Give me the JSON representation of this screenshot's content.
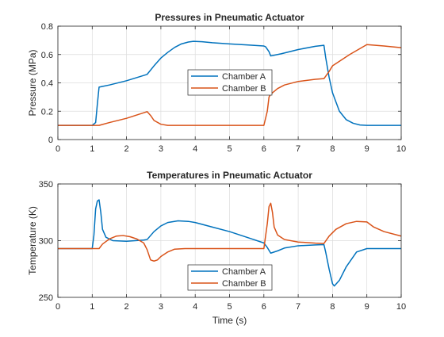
{
  "chart_data": [
    {
      "type": "line",
      "title": "Pressures in Pneumatic Actuator",
      "xlabel": "",
      "ylabel": "Pressure (MPa)",
      "xlim": [
        0,
        10
      ],
      "ylim": [
        0,
        0.8
      ],
      "xticks": [
        "0",
        "1",
        "2",
        "3",
        "4",
        "5",
        "6",
        "7",
        "8",
        "9",
        "10"
      ],
      "yticks": [
        "0",
        "0.2",
        "0.4",
        "0.6",
        "0.8"
      ],
      "grid": true,
      "legend": "center",
      "series": [
        {
          "name": "Chamber A",
          "color": "#0072BD",
          "x": [
            0,
            1.0,
            1.1,
            1.15,
            1.2,
            1.5,
            2.0,
            2.6,
            2.8,
            3.0,
            3.2,
            3.4,
            3.6,
            3.8,
            3.95,
            4.2,
            4.5,
            5.0,
            5.5,
            6.0,
            6.05,
            6.15,
            6.2,
            6.5,
            7.0,
            7.5,
            7.75,
            7.8,
            7.9,
            8.0,
            8.2,
            8.4,
            8.6,
            8.8,
            9.0,
            9.5,
            10
          ],
          "y": [
            0.1,
            0.1,
            0.12,
            0.25,
            0.37,
            0.385,
            0.415,
            0.46,
            0.52,
            0.575,
            0.615,
            0.65,
            0.675,
            0.688,
            0.693,
            0.69,
            0.683,
            0.675,
            0.668,
            0.66,
            0.655,
            0.62,
            0.59,
            0.605,
            0.635,
            0.658,
            0.665,
            0.58,
            0.44,
            0.33,
            0.2,
            0.14,
            0.115,
            0.103,
            0.1,
            0.1,
            0.1
          ]
        },
        {
          "name": "Chamber B",
          "color": "#D95319",
          "x": [
            0,
            1.2,
            1.5,
            2.0,
            2.6,
            2.7,
            2.8,
            3.0,
            3.2,
            3.5,
            4.0,
            5.0,
            6.0,
            6.1,
            6.15,
            6.2,
            6.4,
            6.6,
            7.0,
            7.5,
            7.75,
            7.9,
            8.0,
            8.5,
            9.0,
            9.5,
            10
          ],
          "y": [
            0.1,
            0.1,
            0.12,
            0.15,
            0.197,
            0.17,
            0.135,
            0.108,
            0.1,
            0.1,
            0.1,
            0.1,
            0.1,
            0.2,
            0.3,
            0.32,
            0.36,
            0.385,
            0.41,
            0.425,
            0.43,
            0.48,
            0.52,
            0.6,
            0.67,
            0.66,
            0.648
          ]
        }
      ]
    },
    {
      "type": "line",
      "title": "Temperatures in Pneumatic Actuator",
      "xlabel": "Time (s)",
      "ylabel": "Temperature (K)",
      "xlim": [
        0,
        10
      ],
      "ylim": [
        250,
        350
      ],
      "xticks": [
        "0",
        "1",
        "2",
        "3",
        "4",
        "5",
        "6",
        "7",
        "8",
        "9",
        "10"
      ],
      "yticks": [
        "250",
        "300",
        "350"
      ],
      "grid": true,
      "legend": "bottom-center",
      "series": [
        {
          "name": "Chamber A",
          "color": "#0072BD",
          "x": [
            0,
            1.0,
            1.05,
            1.1,
            1.15,
            1.2,
            1.25,
            1.3,
            1.4,
            1.6,
            2.0,
            2.5,
            2.6,
            2.8,
            3.0,
            3.2,
            3.5,
            3.8,
            4.0,
            4.5,
            5.0,
            5.5,
            6.0,
            6.1,
            6.2,
            6.4,
            6.6,
            7.0,
            7.5,
            7.75,
            7.8,
            7.9,
            8.0,
            8.05,
            8.2,
            8.4,
            8.7,
            9.0,
            9.5,
            10
          ],
          "y": [
            293,
            293,
            305,
            328,
            335,
            336,
            325,
            310,
            303,
            300,
            299.5,
            300.5,
            301,
            308,
            313,
            316,
            317.5,
            317,
            316,
            312,
            308,
            303,
            298,
            294,
            289,
            291,
            293.5,
            295.5,
            296.2,
            296.5,
            290,
            275,
            262,
            260,
            265,
            277,
            290,
            293,
            293,
            293
          ]
        },
        {
          "name": "Chamber B",
          "color": "#D95319",
          "x": [
            0,
            1.2,
            1.3,
            1.5,
            1.7,
            1.9,
            2.1,
            2.3,
            2.5,
            2.6,
            2.7,
            2.8,
            2.9,
            3.0,
            3.2,
            3.4,
            3.7,
            4.0,
            5.0,
            6.0,
            6.1,
            6.15,
            6.2,
            6.25,
            6.3,
            6.4,
            6.6,
            7.0,
            7.5,
            7.75,
            7.9,
            8.1,
            8.4,
            8.7,
            9.0,
            9.2,
            9.5,
            10
          ],
          "y": [
            293,
            293,
            297,
            301.5,
            304,
            304.5,
            303.5,
            301.5,
            298,
            292,
            283,
            282,
            283,
            286,
            290,
            292.5,
            293,
            293,
            293,
            293,
            315,
            330,
            333,
            325,
            312,
            305,
            301,
            298.8,
            297.8,
            297.5,
            304,
            310,
            315,
            317,
            316.5,
            312,
            308,
            304
          ]
        }
      ]
    }
  ]
}
